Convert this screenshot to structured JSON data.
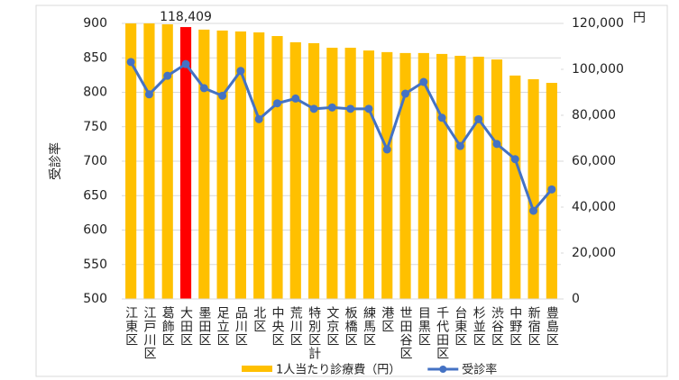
{
  "chart_data": {
    "type": "bar",
    "categories": [
      "江東区",
      "江戸川区",
      "葛飾区",
      "大田区",
      "墨田区",
      "足立区",
      "品川区",
      "北区",
      "中央区",
      "荒川区",
      "特別区計",
      "文京区",
      "板橋区",
      "練馬区",
      "港区",
      "世田谷区",
      "目黒区",
      "千代田区",
      "台東区",
      "杉並区",
      "渋谷区",
      "中野区",
      "新宿区",
      "豊島区"
    ],
    "ylabel": "受診率",
    "y2unit": "円",
    "ylim": [
      500,
      900
    ],
    "yticks": [
      500,
      550,
      600,
      650,
      700,
      750,
      800,
      850,
      900
    ],
    "y2lim": [
      0,
      120000
    ],
    "y2ticks": [
      0,
      {
        "value": 20000,
        "label": "20,000"
      },
      {
        "value": 40000,
        "label": "40,000"
      },
      {
        "value": 60000,
        "label": "60,000"
      },
      {
        "value": 80000,
        "label": "80,000"
      },
      {
        "value": 100000,
        "label": "100,000"
      },
      {
        "value": 120000,
        "label": "120,000"
      }
    ],
    "series": [
      {
        "name": "1人当たり診療費（円）",
        "type": "bar",
        "axis": "y2",
        "color": "#ffc000",
        "colors": [
          "#ffc000",
          "#ffc000",
          "#ffc000",
          "#ff0000",
          "#ffc000",
          "#ffc000",
          "#ffc000",
          "#ffc000",
          "#ffc000",
          "#ffc000",
          "#ffc000",
          "#ffc000",
          "#ffc000",
          "#ffc000",
          "#ffc000",
          "#ffc000",
          "#ffc000",
          "#ffc000",
          "#ffc000",
          "#ffc000",
          "#ffc000",
          "#ffc000",
          "#ffc000",
          "#ffc000"
        ],
        "values": [
          120000,
          120000,
          119600,
          118409,
          117300,
          116900,
          116500,
          116100,
          114500,
          111800,
          111400,
          109400,
          109400,
          108200,
          107500,
          107100,
          107100,
          106700,
          105900,
          105500,
          104300,
          97300,
          95700,
          94100
        ],
        "value_labels": [
          null,
          null,
          null,
          "118,409",
          null,
          null,
          null,
          null,
          null,
          null,
          null,
          null,
          null,
          null,
          null,
          null,
          null,
          null,
          null,
          null,
          null,
          null,
          null,
          null
        ]
      },
      {
        "name": "受診率",
        "type": "line",
        "color": "#4472c4",
        "values": [
          844,
          797,
          824,
          841,
          806,
          795,
          831,
          761,
          784,
          791,
          776,
          778,
          776,
          776,
          717,
          798,
          815,
          763,
          722,
          761,
          725,
          703,
          628,
          659
        ]
      }
    ]
  }
}
